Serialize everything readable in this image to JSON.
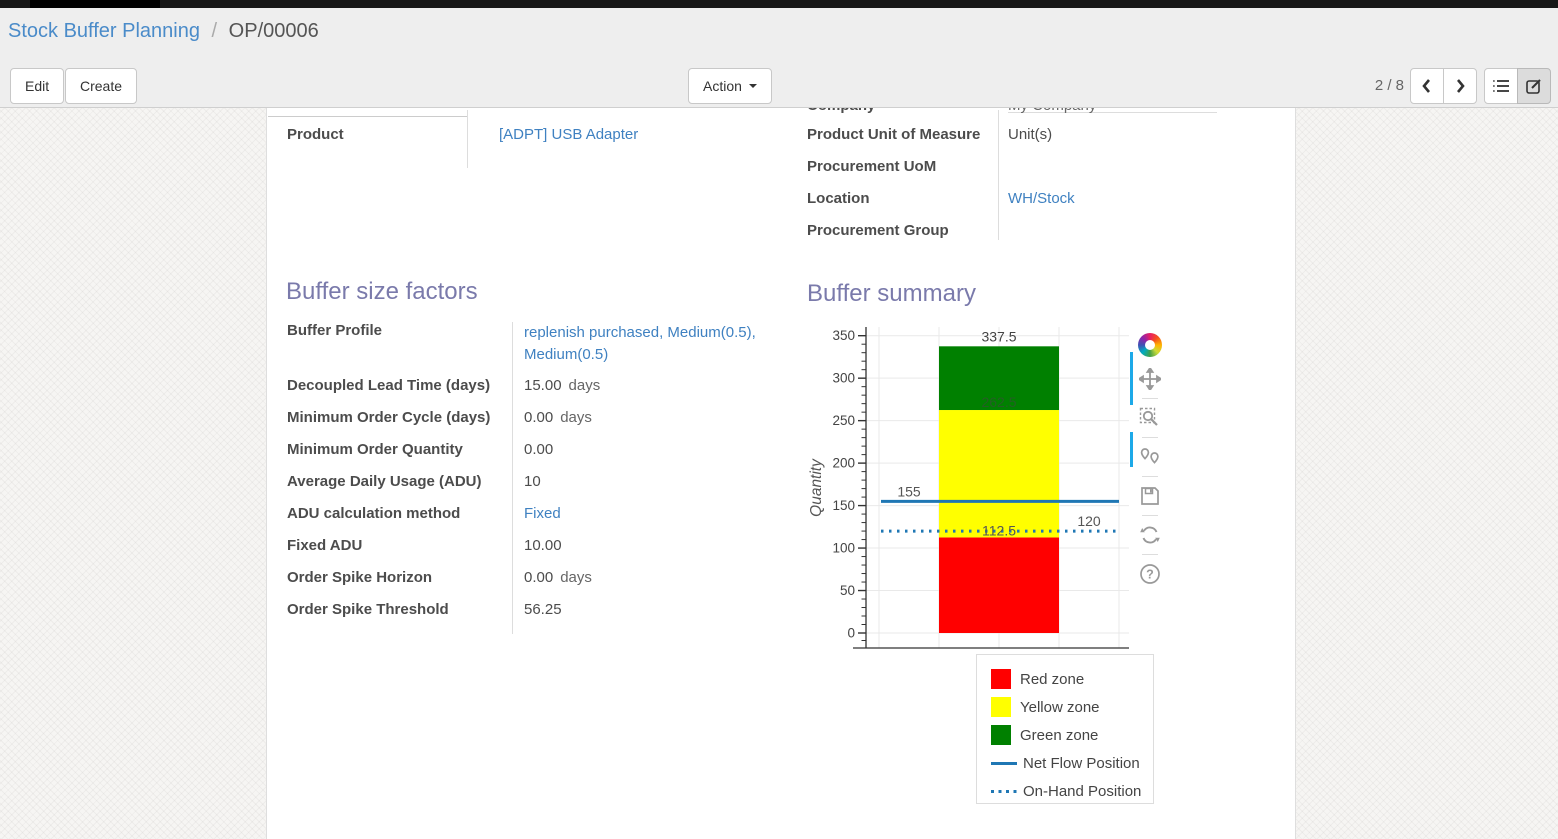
{
  "breadcrumb": {
    "parent": "Stock Buffer Planning",
    "separator": "/",
    "current": "OP/00006"
  },
  "toolbar": {
    "edit_label": "Edit",
    "create_label": "Create",
    "action_label": "Action",
    "pager_text": "2 / 8",
    "icons": [
      "previous-page-icon",
      "next-page-icon",
      "list-view-icon",
      "form-view-icon"
    ]
  },
  "form": {
    "clipped_row": {
      "label": "Company",
      "value": "My Company"
    },
    "left_group": {
      "rows": [
        {
          "label": "Product",
          "value": "[ADPT] USB Adapter",
          "link": true
        }
      ]
    },
    "right_group": {
      "rows": [
        {
          "label": "Product Unit of Measure",
          "value": "Unit(s)",
          "link": false
        },
        {
          "label": "Procurement UoM",
          "value": "",
          "link": false
        },
        {
          "label": "Location",
          "value": "WH/Stock",
          "link": true
        },
        {
          "label": "Procurement Group",
          "value": "",
          "link": false
        }
      ]
    },
    "buffer_factors": {
      "title": "Buffer size factors",
      "rows": [
        {
          "label": "Buffer Profile",
          "value": "replenish purchased, Medium(0.5), Medium(0.5)",
          "link": true,
          "two_line": true
        },
        {
          "label": "Decoupled Lead Time (days)",
          "value": "15.00",
          "suffix": "days"
        },
        {
          "label": "Minimum Order Cycle (days)",
          "value": "0.00",
          "suffix": "days"
        },
        {
          "label": "Minimum Order Quantity",
          "value": "0.00"
        },
        {
          "label": "Average Daily Usage (ADU)",
          "value": "10"
        },
        {
          "label": "ADU calculation method",
          "value": "Fixed",
          "link": true
        },
        {
          "label": "Fixed ADU",
          "value": "10.00"
        },
        {
          "label": "Order Spike Horizon",
          "value": "0.00",
          "suffix": "days"
        },
        {
          "label": "Order Spike Threshold",
          "value": "56.25"
        }
      ]
    },
    "buffer_summary": {
      "title": "Buffer summary"
    }
  },
  "chart_data": {
    "type": "bar",
    "title": "Buffer summary",
    "ylabel": "Quantity",
    "ylim": [
      0,
      350
    ],
    "ytick_interval": 50,
    "grid": true,
    "zones": [
      {
        "name": "Red zone",
        "from": 0,
        "to": 112.5,
        "color": "#ff0000"
      },
      {
        "name": "Yellow zone",
        "from": 112.5,
        "to": 262.5,
        "color": "#ffff00"
      },
      {
        "name": "Green zone",
        "from": 262.5,
        "to": 337.5,
        "color": "#008000"
      }
    ],
    "lines": [
      {
        "name": "Net Flow Position",
        "value": 155,
        "style": "solid",
        "color": "#1f77b4",
        "label_side": "left"
      },
      {
        "name": "On-Hand Position",
        "value": 120,
        "style": "dotted",
        "color": "#1f77b4",
        "label_side": "right"
      }
    ],
    "bar_labels": [
      "337.5",
      "262.5",
      "112.5"
    ],
    "legend_position": "bottom-right",
    "legend": [
      "Red zone",
      "Yellow zone",
      "Green zone",
      "Net Flow Position",
      "On-Hand Position"
    ]
  }
}
